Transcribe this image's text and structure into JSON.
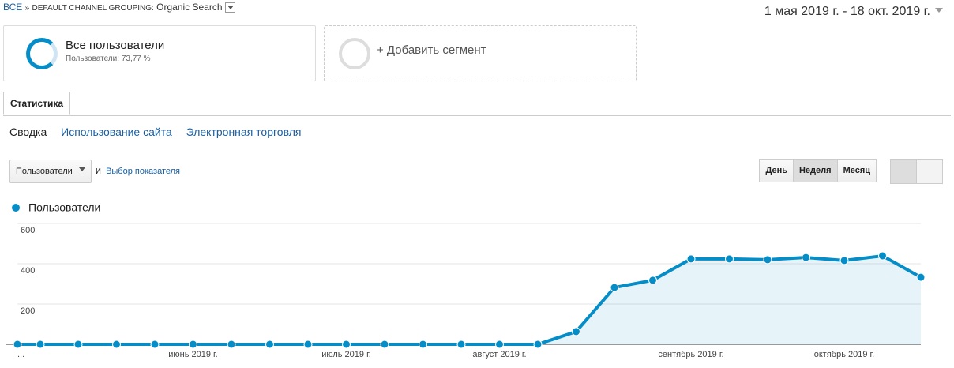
{
  "breadcrumb": {
    "root": "ВСЕ",
    "separator": "»",
    "dimension": "DEFAULT CHANNEL GROUPING:",
    "value": "Organic Search"
  },
  "date_range": "1 мая 2019 г. - 18 окт. 2019 г.",
  "segments": [
    {
      "title": "Все пользователи",
      "subtitle": "Пользователи: 73,77 %"
    },
    {
      "title": "+ Добавить сегмент"
    }
  ],
  "tab": "Статистика",
  "subtabs": [
    "Сводка",
    "Использование сайта",
    "Электронная торговля"
  ],
  "metric_selector": {
    "metric": "Пользователи",
    "conjunction": "и",
    "secondary": "Выбор показателя"
  },
  "granularity": [
    "День",
    "Неделя",
    "Месяц"
  ],
  "chart_data": {
    "type": "area",
    "categories": [
      "...",
      null,
      null,
      null,
      null,
      "июнь 2019 г.",
      null,
      null,
      null,
      "июль 2019 г.",
      null,
      null,
      null,
      "август 2019 г.",
      null,
      null,
      null,
      null,
      "сентябрь 2019 г.",
      null,
      null,
      null,
      "октябрь 2019 г.",
      null,
      null
    ],
    "series": [
      {
        "name": "Пользователи",
        "color": "#058dc7",
        "values": [
          0,
          0,
          0,
          0,
          0,
          0,
          0,
          0,
          0,
          0,
          0,
          0,
          0,
          0,
          0,
          63,
          282,
          318,
          424,
          424,
          420,
          431,
          416,
          439,
          333
        ]
      }
    ],
    "ylim": [
      0,
      600
    ],
    "yticks": [
      200,
      400,
      600
    ],
    "grid": true
  }
}
